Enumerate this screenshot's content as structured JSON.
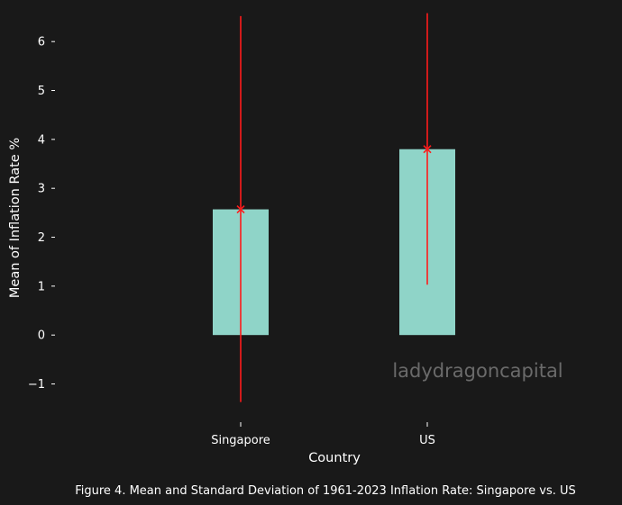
{
  "chart_data": {
    "type": "bar",
    "categories": [
      "Singapore",
      "US"
    ],
    "values": [
      2.57,
      3.8
    ],
    "error_low": [
      -1.37,
      1.03
    ],
    "error_high": [
      6.52,
      6.58
    ],
    "xlabel": "Country",
    "ylabel": "Mean of Inflation Rate %",
    "ylim": [
      -1.8,
      6.85
    ],
    "yticks": [
      -1,
      0,
      1,
      2,
      3,
      4,
      5,
      6
    ],
    "ytick_labels": [
      "−1",
      "0",
      "1",
      "2",
      "3",
      "4",
      "5",
      "6"
    ],
    "grid": false,
    "legend": "none",
    "watermark": "ladydragoncapital",
    "caption": "Figure 4. Mean and Standard Deviation of 1961-2023 Inflation Rate: Singapore vs. US",
    "colors": {
      "background": "#191919",
      "bar": "#8fd4c8",
      "error": "#ff1a1a",
      "text": "#ffffff",
      "watermark": "#6a6a6a"
    }
  }
}
